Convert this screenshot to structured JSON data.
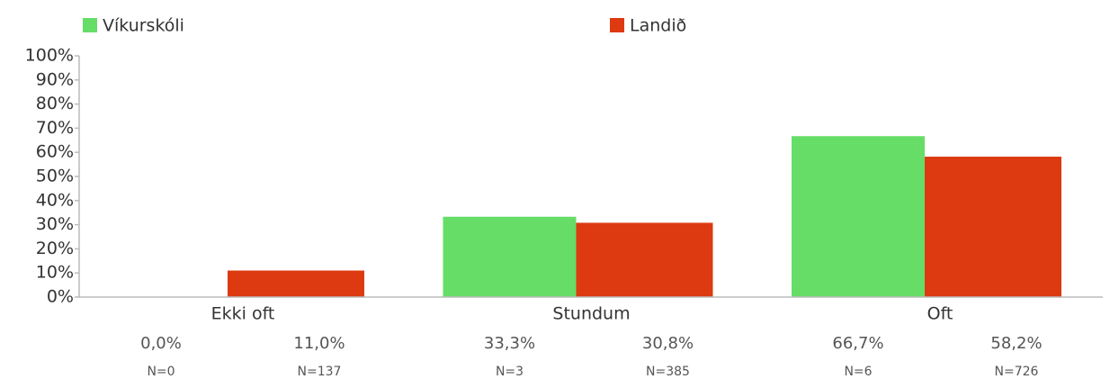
{
  "chart_data": {
    "type": "bar",
    "categories": [
      "Ekki oft",
      "Stundum",
      "Oft"
    ],
    "series": [
      {
        "name": "Víkurskóli",
        "color": "#66dd66",
        "values": [
          0.0,
          33.3,
          66.7
        ],
        "value_labels": [
          "0,0%",
          "33,3%",
          "66,7%"
        ],
        "n_labels": [
          "N=0",
          "N=3",
          "N=6"
        ]
      },
      {
        "name": "Landið",
        "color": "#dd3a12",
        "values": [
          11.0,
          30.8,
          58.2
        ],
        "value_labels": [
          "11,0%",
          "30,8%",
          "58,2%"
        ],
        "n_labels": [
          "N=137",
          "N=385",
          "N=726"
        ]
      }
    ],
    "ylim": [
      0,
      100
    ],
    "yticks": [
      {
        "value": 0,
        "label": "0%"
      },
      {
        "value": 10,
        "label": "10%"
      },
      {
        "value": 20,
        "label": "20%"
      },
      {
        "value": 30,
        "label": "30%"
      },
      {
        "value": 40,
        "label": "40%"
      },
      {
        "value": 50,
        "label": "50%"
      },
      {
        "value": 60,
        "label": "60%"
      },
      {
        "value": 70,
        "label": "70%"
      },
      {
        "value": 80,
        "label": "80%"
      },
      {
        "value": 90,
        "label": "90%"
      },
      {
        "value": 100,
        "label": "100%"
      }
    ],
    "legend": "top"
  }
}
